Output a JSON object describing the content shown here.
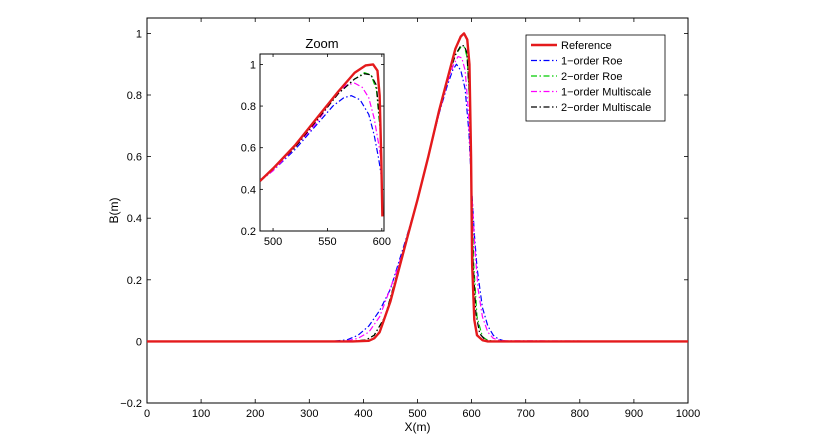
{
  "chart_data": [
    {
      "type": "line",
      "panel": "main",
      "title": "",
      "xlabel": "X(m)",
      "ylabel": "B(m)",
      "xlim": [
        0,
        1000
      ],
      "ylim": [
        -0.2,
        1.05
      ],
      "xticks": [
        0,
        100,
        200,
        300,
        400,
        500,
        600,
        700,
        800,
        900,
        1000
      ],
      "yticks": [
        -0.2,
        0,
        0.2,
        0.4,
        0.6,
        0.8,
        1
      ],
      "ytick_labels": [
        "−0.2",
        "0",
        "0.2",
        "0.4",
        "0.6",
        "0.8",
        "1"
      ],
      "grid": false,
      "legend_position": "top-right",
      "series": [
        {
          "name": "Reference",
          "color": "#e41a1c",
          "dash": "solid",
          "width": 2.4,
          "x": [
            0,
            380,
            410,
            420,
            430,
            450,
            480,
            500,
            520,
            540,
            555,
            570,
            580,
            586,
            592,
            596,
            599,
            601,
            605,
            610,
            620,
            630,
            650,
            1000
          ],
          "y": [
            0,
            0,
            0.002,
            0.01,
            0.03,
            0.13,
            0.33,
            0.46,
            0.6,
            0.75,
            0.85,
            0.95,
            0.99,
            1.0,
            0.98,
            0.9,
            0.6,
            0.25,
            0.07,
            0.02,
            0.004,
            0,
            0,
            0
          ]
        },
        {
          "name": "1−order Roe",
          "color": "#0000ff",
          "dash": "dashdot",
          "width": 1.2,
          "x": [
            0,
            340,
            370,
            390,
            410,
            430,
            450,
            480,
            500,
            520,
            540,
            555,
            565,
            572,
            580,
            588,
            595,
            600,
            605,
            610,
            620,
            630,
            640,
            650,
            660,
            680,
            1000
          ],
          "y": [
            0,
            0,
            0.005,
            0.02,
            0.05,
            0.1,
            0.17,
            0.34,
            0.46,
            0.6,
            0.74,
            0.83,
            0.88,
            0.9,
            0.88,
            0.82,
            0.68,
            0.5,
            0.35,
            0.24,
            0.11,
            0.05,
            0.02,
            0.007,
            0.002,
            0,
            0
          ]
        },
        {
          "name": "2−order Roe",
          "color": "#00cc00",
          "dash": "dashdot",
          "width": 1.2,
          "x": [
            0,
            380,
            405,
            420,
            440,
            480,
            500,
            520,
            540,
            555,
            570,
            580,
            587,
            592,
            597,
            600,
            604,
            610,
            620,
            630,
            650,
            1000
          ],
          "y": [
            0,
            0,
            0.005,
            0.02,
            0.08,
            0.33,
            0.46,
            0.6,
            0.75,
            0.85,
            0.93,
            0.955,
            0.955,
            0.92,
            0.75,
            0.5,
            0.25,
            0.08,
            0.015,
            0.003,
            0,
            0
          ]
        },
        {
          "name": "1−order Multiscale",
          "color": "#ff00ff",
          "dash": "dashdot",
          "width": 1.2,
          "x": [
            0,
            365,
            390,
            410,
            430,
            460,
            480,
            500,
            520,
            540,
            555,
            567,
            575,
            582,
            588,
            594,
            600,
            606,
            612,
            620,
            630,
            640,
            655,
            1000
          ],
          "y": [
            0,
            0,
            0.01,
            0.03,
            0.08,
            0.22,
            0.33,
            0.46,
            0.6,
            0.74,
            0.84,
            0.9,
            0.925,
            0.92,
            0.88,
            0.75,
            0.5,
            0.3,
            0.17,
            0.08,
            0.03,
            0.01,
            0.002,
            0
          ]
        },
        {
          "name": "2−order Multiscale",
          "color": "#000000",
          "dash": "dashdot",
          "width": 1.2,
          "x": [
            0,
            380,
            405,
            420,
            440,
            480,
            500,
            520,
            540,
            555,
            570,
            580,
            586,
            591,
            596,
            599,
            603,
            608,
            615,
            625,
            640,
            1000
          ],
          "y": [
            0,
            0,
            0.005,
            0.02,
            0.08,
            0.33,
            0.46,
            0.6,
            0.75,
            0.85,
            0.93,
            0.96,
            0.96,
            0.94,
            0.8,
            0.55,
            0.25,
            0.09,
            0.025,
            0.005,
            0,
            0
          ]
        }
      ]
    },
    {
      "type": "line",
      "panel": "inset",
      "title": "Zoom",
      "xlim": [
        488,
        602
      ],
      "ylim": [
        0.2,
        1.05
      ],
      "xticks": [
        500,
        550,
        600
      ],
      "yticks": [
        0.2,
        0.4,
        0.6,
        0.8,
        1
      ],
      "ytick_labels": [
        "0.2",
        "0.4",
        "0.6",
        "0.8",
        "1"
      ],
      "series": [
        {
          "name": "Reference",
          "x": [
            488,
            500,
            520,
            540,
            560,
            575,
            585,
            592,
            596,
            598,
            599.5,
            600.5
          ],
          "y": [
            0.44,
            0.5,
            0.61,
            0.74,
            0.87,
            0.96,
            0.995,
            1.0,
            0.97,
            0.85,
            0.55,
            0.27
          ]
        },
        {
          "name": "1−order Roe",
          "x": [
            488,
            500,
            520,
            540,
            555,
            565,
            572,
            580,
            588,
            593,
            597,
            600
          ],
          "y": [
            0.44,
            0.49,
            0.59,
            0.71,
            0.8,
            0.84,
            0.85,
            0.83,
            0.76,
            0.66,
            0.55,
            0.45
          ]
        },
        {
          "name": "2−order Roe",
          "x": [
            488,
            500,
            520,
            540,
            560,
            575,
            584,
            590,
            595,
            599,
            600.5
          ],
          "y": [
            0.44,
            0.5,
            0.6,
            0.73,
            0.86,
            0.93,
            0.96,
            0.95,
            0.88,
            0.65,
            0.3
          ]
        },
        {
          "name": "1−order Multiscale",
          "x": [
            488,
            500,
            520,
            540,
            555,
            567,
            575,
            582,
            588,
            593,
            597,
            600
          ],
          "y": [
            0.44,
            0.49,
            0.6,
            0.72,
            0.83,
            0.9,
            0.91,
            0.89,
            0.84,
            0.74,
            0.62,
            0.52
          ]
        },
        {
          "name": "2−order Multiscale",
          "x": [
            488,
            500,
            520,
            540,
            560,
            575,
            584,
            590,
            595,
            598.5,
            600.5
          ],
          "y": [
            0.44,
            0.5,
            0.6,
            0.73,
            0.86,
            0.93,
            0.955,
            0.95,
            0.9,
            0.7,
            0.28
          ]
        }
      ]
    }
  ]
}
